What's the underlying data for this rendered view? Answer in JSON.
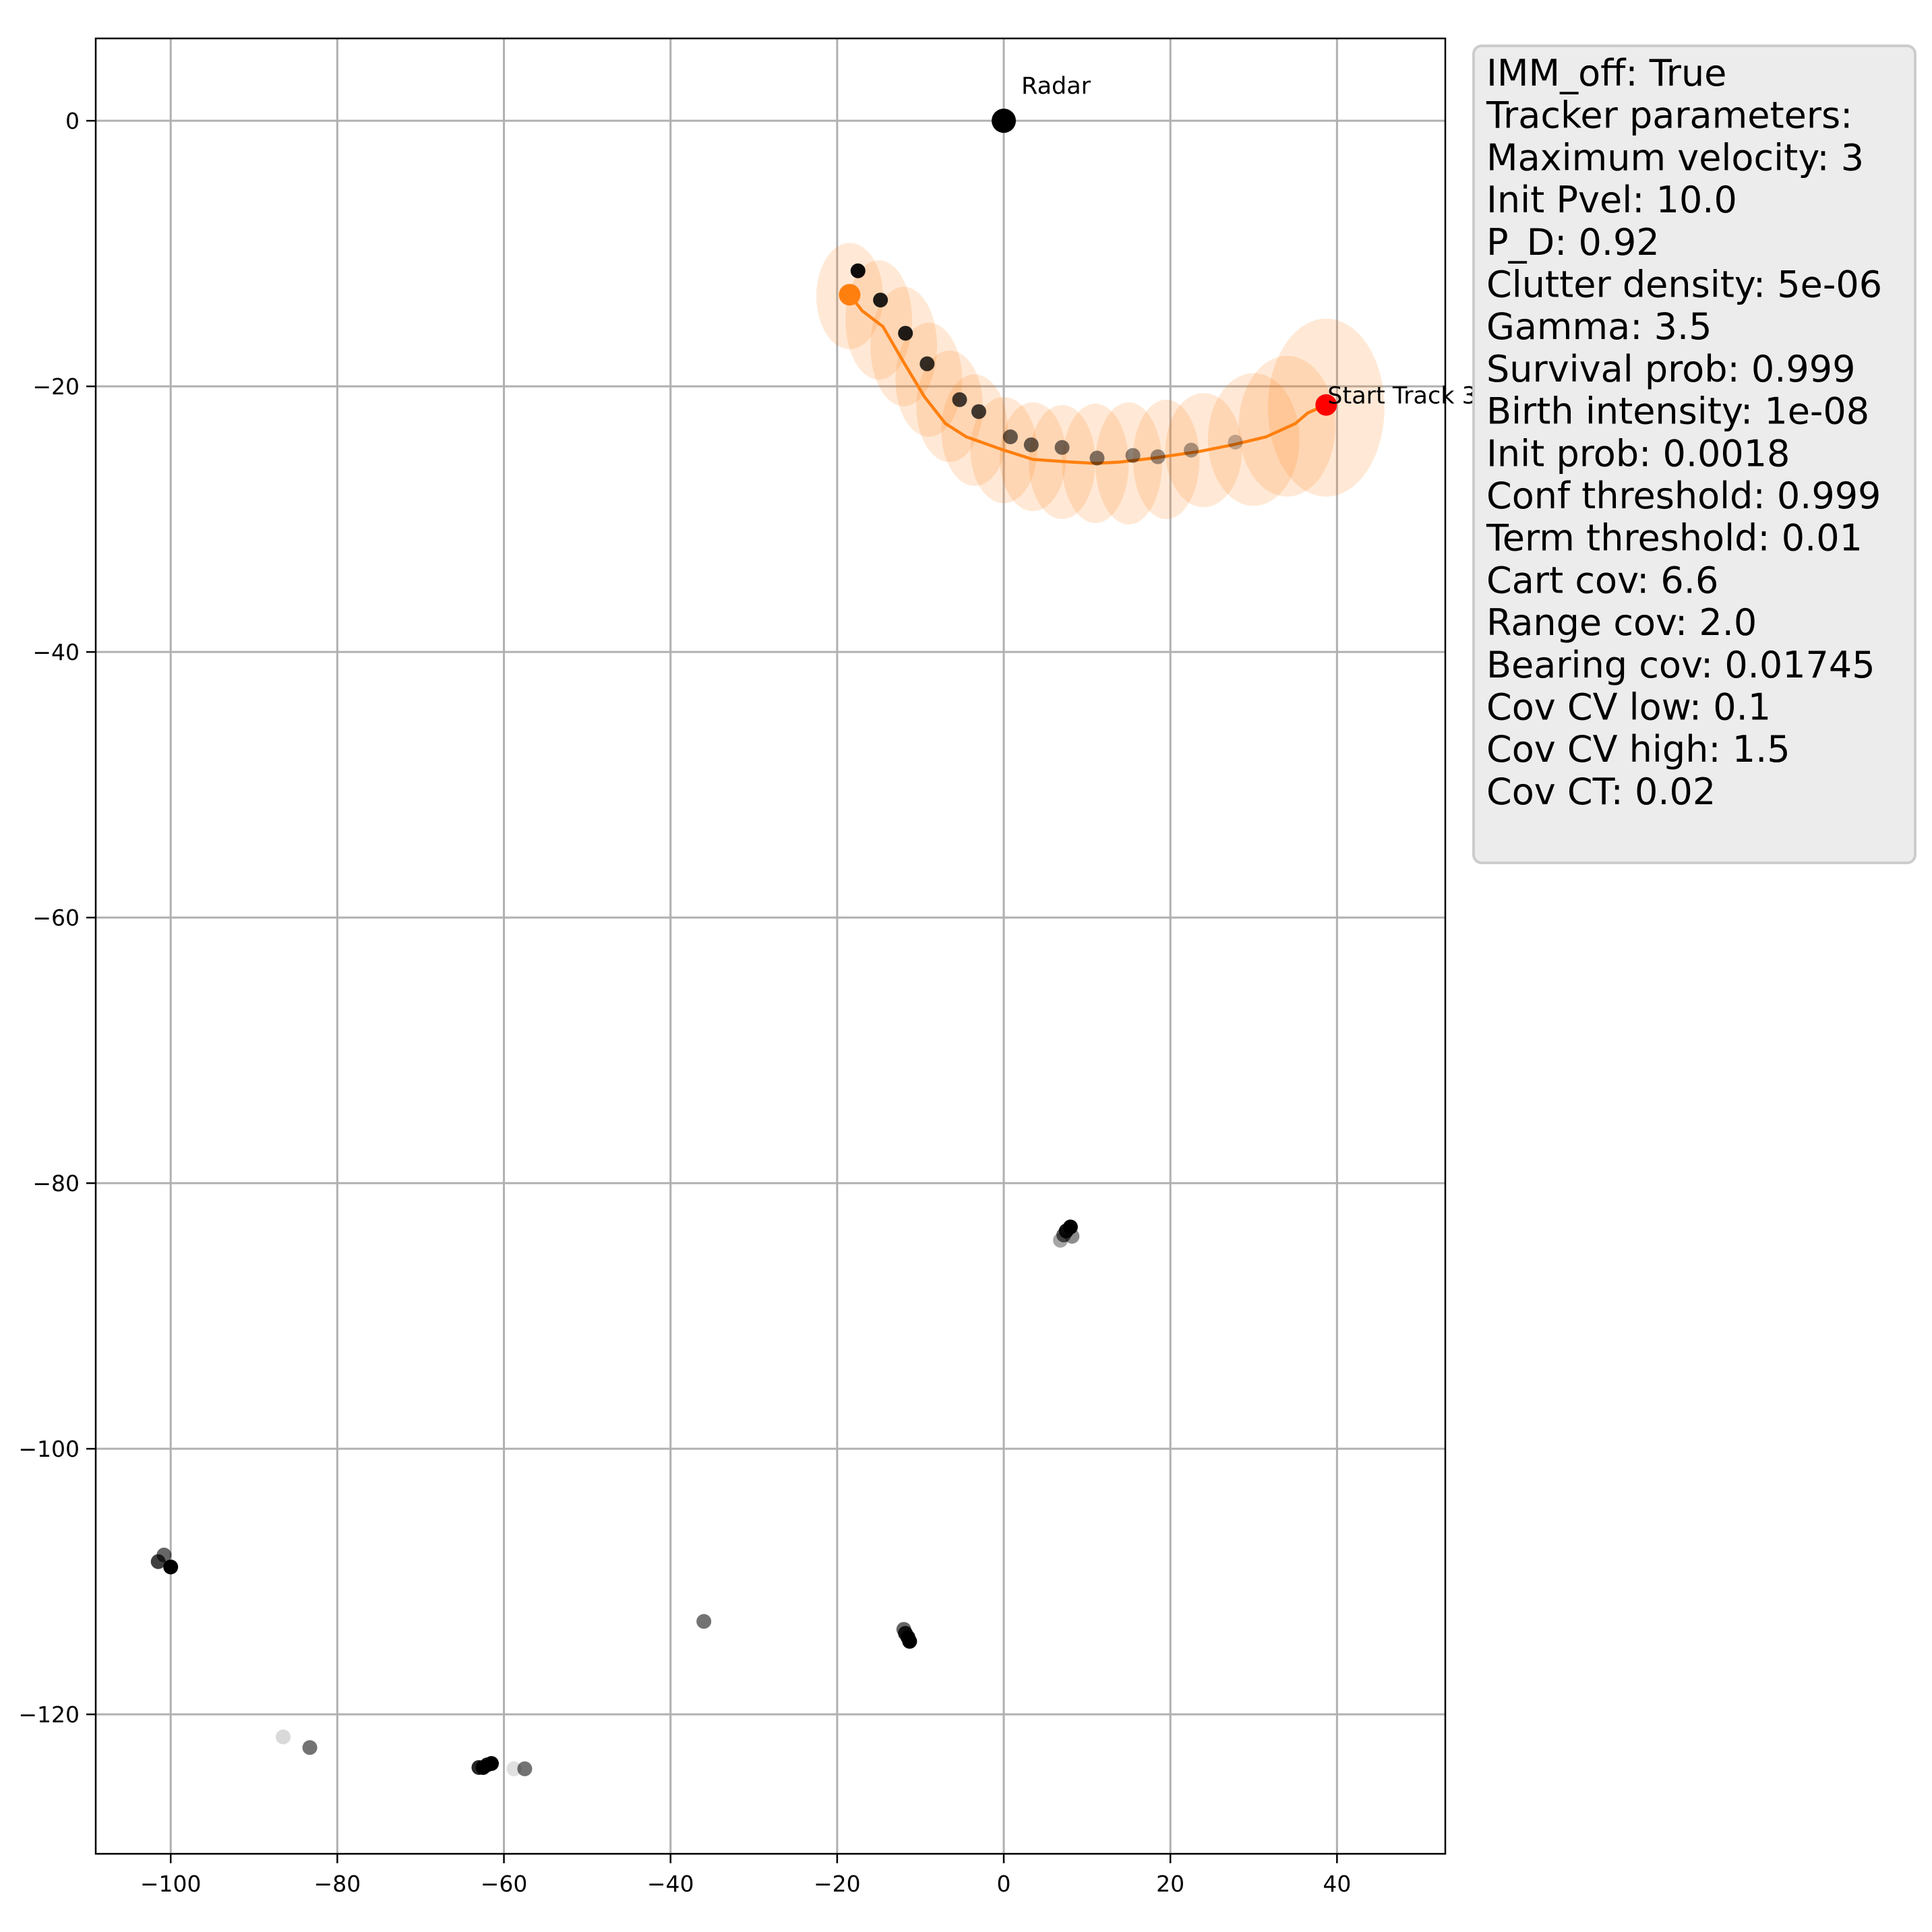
{
  "chart_data": {
    "type": "scatter",
    "title": "",
    "xlabel": "",
    "ylabel": "",
    "xlim": [
      -109,
      53
    ],
    "ylim": [
      -130.5,
      6.2
    ],
    "xticks": [
      -100,
      -80,
      -60,
      -40,
      -20,
      0,
      20,
      40
    ],
    "yticks": [
      0,
      -20,
      -40,
      -60,
      -80,
      -100,
      -120
    ],
    "grid": true,
    "radar": {
      "label": "Radar",
      "x": 0,
      "y": 0
    },
    "track_start": {
      "label": "Start Track 3",
      "x": 38.7,
      "y": -21.4
    },
    "track": {
      "color": "#ff7f0e",
      "start_color": "#ff0000",
      "x": [
        38.7,
        36.5,
        35.0,
        31.5,
        27.5,
        23.5,
        18.0,
        14.0,
        11.0,
        8.0,
        3.5,
        0.0,
        -4.5,
        -7.0,
        -9.5,
        -12.0,
        -14.5,
        -17.0,
        -18.5
      ],
      "y": [
        -21.4,
        -22.0,
        -22.8,
        -23.8,
        -24.4,
        -24.9,
        -25.4,
        -25.7,
        -25.8,
        -25.7,
        -25.5,
        -24.8,
        -23.8,
        -22.8,
        -20.8,
        -18.2,
        -15.5,
        -14.3,
        -13.1
      ],
      "ellipses": [
        {
          "x": 38.7,
          "y": -21.6,
          "rx": 7.0,
          "ry": 6.7
        },
        {
          "x": 34.0,
          "y": -23.0,
          "rx": 5.8,
          "ry": 5.3
        },
        {
          "x": 30.0,
          "y": -24.0,
          "rx": 5.5,
          "ry": 5.0
        },
        {
          "x": 24.0,
          "y": -24.8,
          "rx": 4.6,
          "ry": 4.3
        },
        {
          "x": 19.5,
          "y": -25.5,
          "rx": 4.0,
          "ry": 4.5
        },
        {
          "x": 15.0,
          "y": -25.8,
          "rx": 4.0,
          "ry": 4.6
        },
        {
          "x": 11.0,
          "y": -25.8,
          "rx": 4.0,
          "ry": 4.5
        },
        {
          "x": 7.0,
          "y": -25.7,
          "rx": 4.0,
          "ry": 4.3
        },
        {
          "x": 3.5,
          "y": -25.3,
          "rx": 4.0,
          "ry": 4.1
        },
        {
          "x": 0.0,
          "y": -24.8,
          "rx": 4.0,
          "ry": 4.0
        },
        {
          "x": -3.5,
          "y": -23.3,
          "rx": 4.0,
          "ry": 4.2
        },
        {
          "x": -6.5,
          "y": -21.5,
          "rx": 4.0,
          "ry": 4.2
        },
        {
          "x": -9.0,
          "y": -19.5,
          "rx": 4.0,
          "ry": 4.3
        },
        {
          "x": -12.0,
          "y": -17.0,
          "rx": 4.0,
          "ry": 4.5
        },
        {
          "x": -15.0,
          "y": -15.0,
          "rx": 4.0,
          "ry": 4.5
        },
        {
          "x": -18.5,
          "y": -13.2,
          "rx": 4.0,
          "ry": 4.0
        }
      ]
    },
    "measurements": [
      {
        "x": -17.5,
        "y": -11.3,
        "shade": 0.95
      },
      {
        "x": -14.8,
        "y": -13.5,
        "shade": 0.88
      },
      {
        "x": -11.8,
        "y": -16.0,
        "shade": 0.88
      },
      {
        "x": -9.2,
        "y": -18.3,
        "shade": 0.8
      },
      {
        "x": -5.3,
        "y": -21.0,
        "shade": 0.75
      },
      {
        "x": -3.0,
        "y": -21.9,
        "shade": 0.75
      },
      {
        "x": 0.8,
        "y": -23.8,
        "shade": 0.6
      },
      {
        "x": 3.3,
        "y": -24.4,
        "shade": 0.6
      },
      {
        "x": 7.0,
        "y": -24.6,
        "shade": 0.55
      },
      {
        "x": 11.2,
        "y": -25.4,
        "shade": 0.5
      },
      {
        "x": 15.5,
        "y": -25.2,
        "shade": 0.45
      },
      {
        "x": 18.5,
        "y": -25.3,
        "shade": 0.4
      },
      {
        "x": 22.5,
        "y": -24.8,
        "shade": 0.35
      },
      {
        "x": 27.8,
        "y": -24.2,
        "shade": 0.25
      },
      {
        "x": 8.0,
        "y": -83.3,
        "shade": 1.0
      },
      {
        "x": 7.5,
        "y": -83.6,
        "shade": 0.9
      },
      {
        "x": 7.2,
        "y": -83.9,
        "shade": 0.6
      },
      {
        "x": 8.2,
        "y": -84.0,
        "shade": 0.45
      },
      {
        "x": 6.8,
        "y": -84.3,
        "shade": 0.35
      },
      {
        "x": -101.5,
        "y": -108.5,
        "shade": 0.75
      },
      {
        "x": -100.8,
        "y": -108.0,
        "shade": 0.6
      },
      {
        "x": -100.0,
        "y": -108.9,
        "shade": 1.0
      },
      {
        "x": -36.0,
        "y": -113.0,
        "shade": 0.55
      },
      {
        "x": -12.0,
        "y": -113.6,
        "shade": 0.6
      },
      {
        "x": -11.8,
        "y": -113.9,
        "shade": 0.85
      },
      {
        "x": -11.5,
        "y": -114.2,
        "shade": 0.95
      },
      {
        "x": -11.3,
        "y": -114.5,
        "shade": 1.0
      },
      {
        "x": -86.5,
        "y": -121.7,
        "shade": 0.15
      },
      {
        "x": -83.3,
        "y": -122.5,
        "shade": 0.55
      },
      {
        "x": -63.0,
        "y": -124.0,
        "shade": 0.85
      },
      {
        "x": -62.5,
        "y": -124.0,
        "shade": 1.0
      },
      {
        "x": -62.0,
        "y": -123.8,
        "shade": 0.9
      },
      {
        "x": -61.5,
        "y": -123.7,
        "shade": 1.0
      },
      {
        "x": -58.8,
        "y": -124.1,
        "shade": 0.12
      },
      {
        "x": -57.5,
        "y": -124.1,
        "shade": 0.55
      }
    ]
  },
  "params_box": {
    "lines": [
      "IMM_off: True",
      "Tracker parameters:",
      "Maximum velocity: 3",
      "Init Pvel: 10.0",
      "P_D: 0.92",
      "Clutter density: 5e-06",
      "Gamma: 3.5",
      "Survival prob: 0.999",
      "Birth intensity: 1e-08",
      "Init prob: 0.0018",
      "Conf threshold: 0.999",
      "Term threshold: 0.01",
      "Cart cov: 6.6",
      "Range cov: 2.0",
      "Bearing cov: 0.01745",
      "Cov CV low: 0.1",
      "Cov CV high: 1.5",
      "Cov CT: 0.02"
    ]
  }
}
